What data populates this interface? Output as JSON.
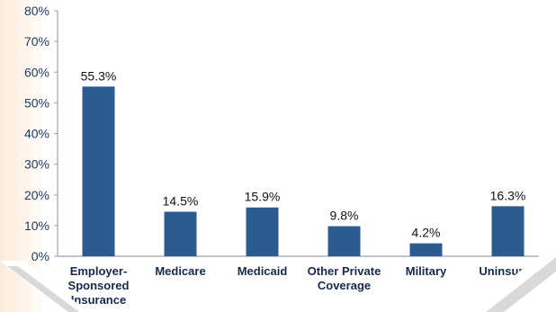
{
  "colors": {
    "bar": "#2b5b90",
    "axis": "#9aa2ad",
    "diagonal_band": "#d9d9d9",
    "label_text": "#16294d"
  },
  "chart_data": {
    "type": "bar",
    "title": "",
    "xlabel": "",
    "ylabel": "",
    "categories": [
      "Employer-Sponsored Insurance",
      "Medicare",
      "Medicaid",
      "Other Private Coverage",
      "Military",
      "Uninsured"
    ],
    "category_lines": [
      [
        "Employer-",
        "Sponsored",
        "Insurance"
      ],
      [
        "Medicare"
      ],
      [
        "Medicaid"
      ],
      [
        "Other Private",
        "Coverage"
      ],
      [
        "Military"
      ],
      [
        "Uninsured"
      ]
    ],
    "values": [
      55.3,
      14.5,
      15.9,
      9.8,
      4.2,
      16.3
    ],
    "data_labels": [
      "55.3%",
      "14.5%",
      "15.9%",
      "9.8%",
      "4.2%",
      "16.3%"
    ],
    "ylim": [
      0,
      80
    ],
    "yticks": [
      0,
      10,
      20,
      30,
      40,
      50,
      60,
      70,
      80
    ],
    "ytick_labels": [
      "0%",
      "10%",
      "20%",
      "30%",
      "40%",
      "50%",
      "60%",
      "70%",
      "80%"
    ],
    "grid": false,
    "legend": "none"
  }
}
